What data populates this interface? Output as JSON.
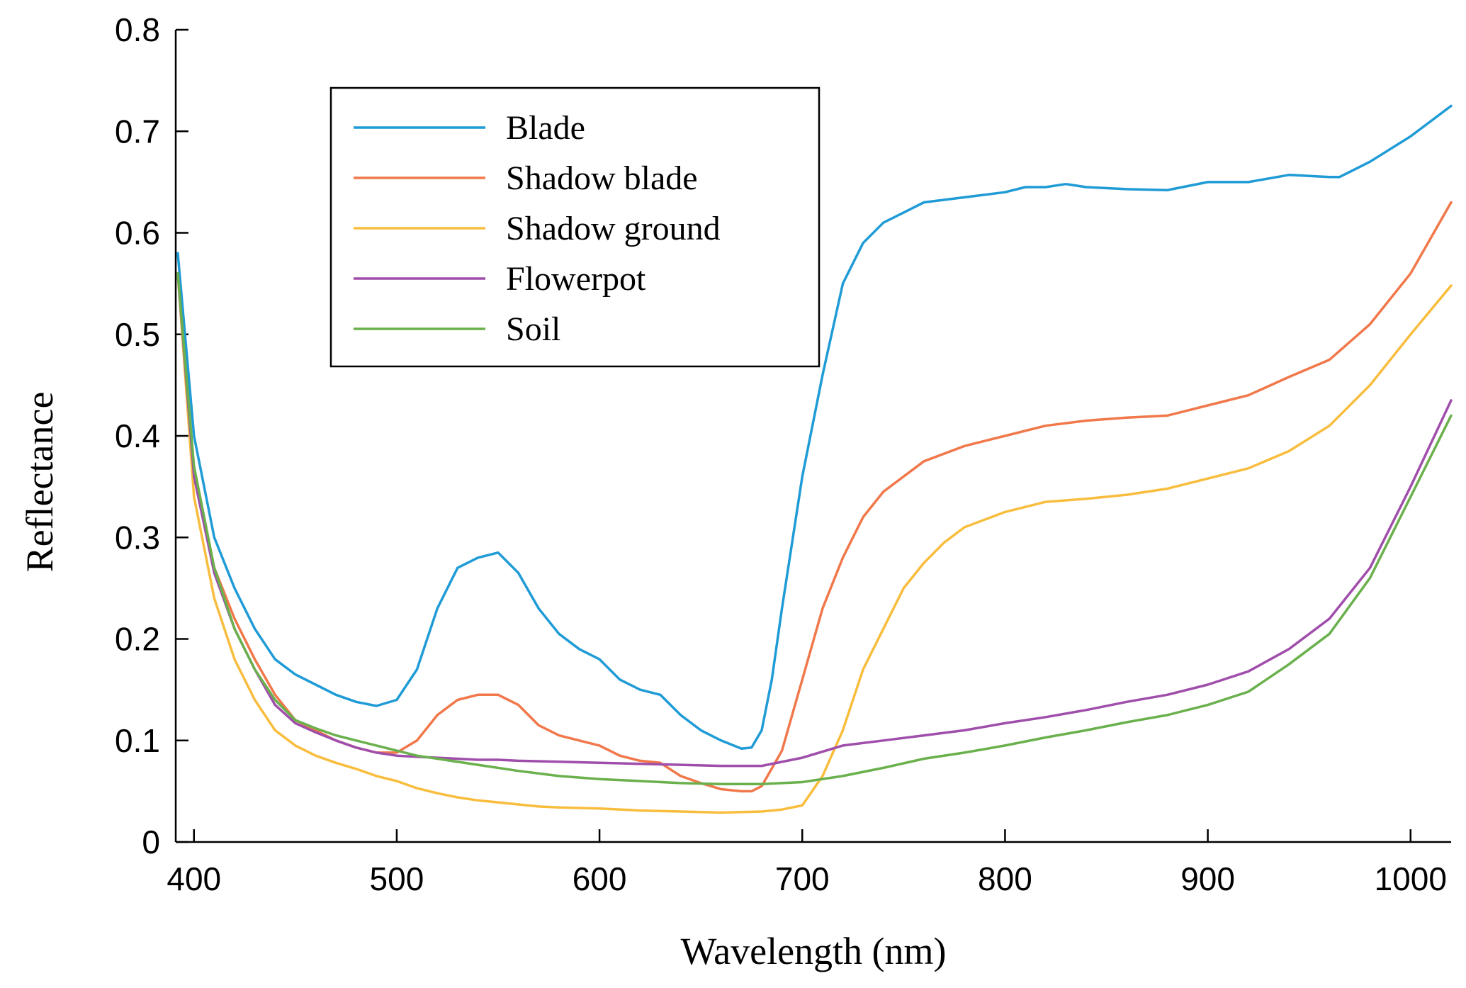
{
  "chart_data": {
    "type": "line",
    "title": "",
    "xlabel": "Wavelength (nm)",
    "ylabel": "Reflectance",
    "xlim": [
      391,
      1020
    ],
    "ylim": [
      0,
      0.8
    ],
    "xticks": [
      400,
      500,
      600,
      700,
      800,
      900,
      1000
    ],
    "yticks": [
      0,
      0.1,
      0.2,
      0.3,
      0.4,
      0.5,
      0.6,
      0.7,
      0.8
    ],
    "ytick_labels": [
      "0",
      "0.1",
      "0.2",
      "0.3",
      "0.4",
      "0.5",
      "0.6",
      "0.7",
      "0.8"
    ],
    "xtick_labels": [
      "400",
      "500",
      "600",
      "700",
      "800",
      "900",
      "1000"
    ],
    "grid": false,
    "legend_position": "top-left",
    "series": [
      {
        "name": "Blade",
        "color": "#1f9bd6",
        "x": [
          392,
          400,
          410,
          420,
          430,
          440,
          450,
          460,
          470,
          480,
          490,
          500,
          510,
          520,
          530,
          540,
          550,
          560,
          570,
          580,
          590,
          600,
          610,
          620,
          630,
          640,
          650,
          660,
          670,
          675,
          680,
          685,
          690,
          700,
          710,
          720,
          730,
          740,
          750,
          760,
          780,
          800,
          810,
          820,
          830,
          840,
          860,
          880,
          900,
          920,
          940,
          960,
          965,
          980,
          1000,
          1020
        ],
        "y": [
          0.58,
          0.4,
          0.3,
          0.25,
          0.21,
          0.18,
          0.165,
          0.155,
          0.145,
          0.138,
          0.134,
          0.14,
          0.17,
          0.23,
          0.27,
          0.28,
          0.285,
          0.265,
          0.23,
          0.205,
          0.19,
          0.18,
          0.16,
          0.15,
          0.145,
          0.125,
          0.11,
          0.1,
          0.092,
          0.093,
          0.11,
          0.16,
          0.23,
          0.36,
          0.46,
          0.55,
          0.59,
          0.61,
          0.62,
          0.63,
          0.635,
          0.64,
          0.645,
          0.645,
          0.648,
          0.645,
          0.643,
          0.642,
          0.65,
          0.65,
          0.657,
          0.655,
          0.655,
          0.67,
          0.695,
          0.725
        ]
      },
      {
        "name": "Shadow blade",
        "color": "#f0784a",
        "x": [
          392,
          400,
          410,
          420,
          430,
          440,
          450,
          460,
          470,
          480,
          490,
          500,
          510,
          520,
          530,
          540,
          550,
          560,
          570,
          580,
          590,
          600,
          610,
          620,
          630,
          640,
          650,
          660,
          670,
          675,
          680,
          690,
          700,
          710,
          720,
          730,
          740,
          750,
          760,
          780,
          800,
          820,
          840,
          860,
          880,
          900,
          920,
          940,
          960,
          980,
          1000,
          1020
        ],
        "y": [
          0.56,
          0.36,
          0.27,
          0.22,
          0.18,
          0.145,
          0.12,
          0.11,
          0.1,
          0.093,
          0.088,
          0.088,
          0.1,
          0.125,
          0.14,
          0.145,
          0.145,
          0.135,
          0.115,
          0.105,
          0.1,
          0.095,
          0.085,
          0.08,
          0.078,
          0.065,
          0.058,
          0.052,
          0.05,
          0.05,
          0.055,
          0.09,
          0.16,
          0.23,
          0.28,
          0.32,
          0.345,
          0.36,
          0.375,
          0.39,
          0.4,
          0.41,
          0.415,
          0.418,
          0.42,
          0.43,
          0.44,
          0.458,
          0.475,
          0.51,
          0.56,
          0.63
        ]
      },
      {
        "name": "Shadow ground",
        "color": "#f9bd3e",
        "x": [
          392,
          400,
          410,
          420,
          430,
          440,
          450,
          460,
          470,
          480,
          490,
          500,
          510,
          520,
          530,
          540,
          550,
          560,
          570,
          580,
          600,
          620,
          640,
          660,
          680,
          690,
          700,
          710,
          720,
          730,
          740,
          750,
          760,
          770,
          780,
          800,
          820,
          840,
          860,
          880,
          900,
          920,
          940,
          960,
          980,
          1000,
          1020
        ],
        "y": [
          0.56,
          0.34,
          0.24,
          0.18,
          0.14,
          0.11,
          0.095,
          0.085,
          0.078,
          0.072,
          0.065,
          0.06,
          0.053,
          0.048,
          0.044,
          0.041,
          0.039,
          0.037,
          0.035,
          0.034,
          0.033,
          0.031,
          0.03,
          0.029,
          0.03,
          0.032,
          0.036,
          0.065,
          0.11,
          0.17,
          0.21,
          0.25,
          0.275,
          0.295,
          0.31,
          0.325,
          0.335,
          0.338,
          0.342,
          0.348,
          0.358,
          0.368,
          0.385,
          0.41,
          0.45,
          0.5,
          0.548
        ]
      },
      {
        "name": "Flowerpot",
        "color": "#a04eab",
        "x": [
          392,
          400,
          410,
          420,
          430,
          440,
          450,
          460,
          470,
          480,
          490,
          500,
          510,
          520,
          530,
          540,
          550,
          560,
          580,
          600,
          620,
          640,
          660,
          680,
          700,
          720,
          740,
          760,
          780,
          800,
          820,
          840,
          860,
          880,
          900,
          920,
          940,
          960,
          980,
          1000,
          1020
        ],
        "y": [
          0.56,
          0.36,
          0.265,
          0.21,
          0.17,
          0.135,
          0.117,
          0.108,
          0.1,
          0.093,
          0.088,
          0.085,
          0.084,
          0.083,
          0.082,
          0.081,
          0.081,
          0.08,
          0.079,
          0.078,
          0.077,
          0.076,
          0.075,
          0.075,
          0.083,
          0.095,
          0.1,
          0.105,
          0.11,
          0.117,
          0.123,
          0.13,
          0.138,
          0.145,
          0.155,
          0.168,
          0.19,
          0.22,
          0.27,
          0.35,
          0.435
        ]
      },
      {
        "name": "Soil",
        "color": "#6ab04c",
        "x": [
          392,
          400,
          410,
          420,
          430,
          440,
          450,
          460,
          470,
          480,
          490,
          500,
          510,
          520,
          540,
          560,
          580,
          600,
          620,
          640,
          660,
          680,
          700,
          720,
          740,
          760,
          780,
          800,
          820,
          840,
          860,
          880,
          900,
          920,
          940,
          960,
          980,
          1000,
          1020
        ],
        "y": [
          0.56,
          0.37,
          0.27,
          0.21,
          0.17,
          0.14,
          0.12,
          0.112,
          0.105,
          0.1,
          0.095,
          0.09,
          0.085,
          0.082,
          0.076,
          0.07,
          0.065,
          0.062,
          0.06,
          0.058,
          0.057,
          0.057,
          0.059,
          0.065,
          0.073,
          0.082,
          0.088,
          0.095,
          0.103,
          0.11,
          0.118,
          0.125,
          0.135,
          0.148,
          0.175,
          0.205,
          0.26,
          0.34,
          0.42
        ]
      }
    ]
  }
}
